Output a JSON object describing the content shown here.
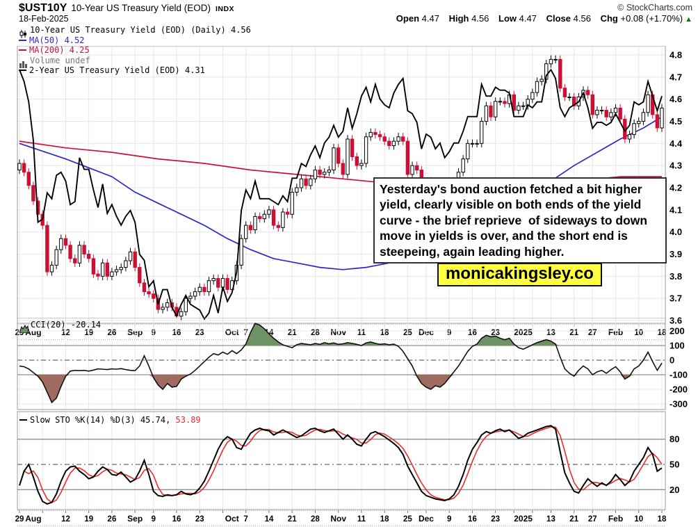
{
  "header": {
    "symbol": "$UST10Y",
    "title": "10-Year US Treasury Yield (EOD)",
    "exchange": "INDX",
    "date": "18-Feb-2025",
    "source": "© StockCharts.com"
  },
  "quote": {
    "open": {
      "label": "Open",
      "value": "4.47"
    },
    "high": {
      "label": "High",
      "value": "4.56"
    },
    "low": {
      "label": "Low",
      "value": "4.47"
    },
    "close": {
      "label": "Close",
      "value": "4.56"
    },
    "chg": {
      "label": "Chg",
      "value": "+0.08 (+1.70%)"
    },
    "direction_icon": "▲"
  },
  "legend": {
    "price": "10-Year US Treasury Yield (EOD) (Daily) 4.56",
    "ma50": "MA(50) 4.52",
    "ma200": "MA(200) 4.25",
    "volume": "Volume undef",
    "two_year": "2-Year US Treasury Yield (EOD) 4.31",
    "cci": "CCI(20) -20.14",
    "sto_black": "Slow STO %K(14) %D(3) 45.74,",
    "sto_red": "53.89"
  },
  "annotation": {
    "text": "Yesterday's bond auction fetched a bit higher yield, clearly visible on both ends of the yield curve - the brief reprieve  of sideways to down move in yields is over, and the short end is steepeing, again leading higher."
  },
  "watermark": "monicakingsley.co",
  "colors": {
    "candle_down": "#cc1034",
    "candle_up_fill": "#ffffff",
    "outline": "#000000",
    "ma50": "#2929c8",
    "ma200": "#cc1034",
    "sto_d": "#ee2a2a",
    "cci_green_fill": "#6d9263",
    "cci_maroon_fill": "#a06a60",
    "grid": "#e7e7e7",
    "panel_border": "#999999",
    "strong_grid": "#909090",
    "up_triangle": "#117711",
    "watermark_bg": "#ffff42"
  },
  "chart_data": {
    "x_days": 140,
    "week_idx": [
      0,
      5,
      10,
      15,
      20,
      25,
      29,
      34,
      39,
      44,
      49,
      54,
      59,
      64,
      69,
      74,
      79,
      84,
      88,
      93,
      98,
      103,
      107,
      111,
      115,
      120,
      124,
      129,
      134,
      139
    ],
    "xticks": [
      [
        0,
        "29",
        0
      ],
      [
        3,
        "Aug",
        1
      ],
      [
        10,
        "12",
        0
      ],
      [
        15,
        "19",
        0
      ],
      [
        20,
        "26",
        0
      ],
      [
        25,
        "Sep",
        1
      ],
      [
        29,
        "9",
        0
      ],
      [
        34,
        "16",
        0
      ],
      [
        39,
        "23",
        0
      ],
      [
        46,
        "Oct",
        1
      ],
      [
        49,
        "7",
        0
      ],
      [
        54,
        "14",
        0
      ],
      [
        59,
        "21",
        0
      ],
      [
        64,
        "28",
        0
      ],
      [
        69,
        "Nov",
        1
      ],
      [
        74,
        "11",
        0
      ],
      [
        79,
        "18",
        0
      ],
      [
        84,
        "25",
        0
      ],
      [
        88,
        "Dec",
        1
      ],
      [
        93,
        "9",
        0
      ],
      [
        98,
        "16",
        0
      ],
      [
        103,
        "23",
        0
      ],
      [
        109,
        "2025",
        1
      ],
      [
        115,
        "13",
        0
      ],
      [
        120,
        "21",
        0
      ],
      [
        124,
        "27",
        0
      ],
      [
        129,
        "Feb",
        1
      ],
      [
        134,
        "10",
        0
      ],
      [
        139,
        "18",
        0
      ]
    ],
    "main": {
      "type": "candlestick",
      "yticks": [
        "4.8",
        "4.7",
        "4.6",
        "4.5",
        "4.4",
        "4.3",
        "4.2",
        "4.1",
        "4.0",
        "3.9",
        "3.8",
        "3.7",
        "3.6"
      ],
      "ylim": [
        3.6,
        4.8
      ],
      "first_open": 4.28,
      "wick": 0.018,
      "closes": [
        4.31,
        4.27,
        4.21,
        4.14,
        4.08,
        4.03,
        3.82,
        3.85,
        3.92,
        3.97,
        3.94,
        3.88,
        3.86,
        3.94,
        3.9,
        3.88,
        3.81,
        3.8,
        3.86,
        3.8,
        3.82,
        3.83,
        3.84,
        3.87,
        3.91,
        3.84,
        3.77,
        3.73,
        3.72,
        3.7,
        3.65,
        3.66,
        3.68,
        3.66,
        3.62,
        3.64,
        3.7,
        3.71,
        3.73,
        3.75,
        3.73,
        3.78,
        3.79,
        3.75,
        3.79,
        3.74,
        3.78,
        3.85,
        3.97,
        4.03,
        4.01,
        4.07,
        4.06,
        4.08,
        4.1,
        4.03,
        4.02,
        4.09,
        4.08,
        4.18,
        4.2,
        4.24,
        4.21,
        4.24,
        4.28,
        4.26,
        4.27,
        4.28,
        4.38,
        4.31,
        4.26,
        4.42,
        4.34,
        4.3,
        4.31,
        4.43,
        4.45,
        4.44,
        4.43,
        4.41,
        4.39,
        4.41,
        4.43,
        4.41,
        4.26,
        4.3,
        4.28,
        4.18,
        4.19,
        4.23,
        4.18,
        4.18,
        4.15,
        4.2,
        4.23,
        4.27,
        4.33,
        4.4,
        4.4,
        4.4,
        4.5,
        4.57,
        4.52,
        4.59,
        4.59,
        4.58,
        4.62,
        4.55,
        4.57,
        4.57,
        4.6,
        4.63,
        4.68,
        4.69,
        4.76,
        4.78,
        4.78,
        4.65,
        4.61,
        4.61,
        4.57,
        4.61,
        4.64,
        4.62,
        4.53,
        4.55,
        4.55,
        4.52,
        4.54,
        4.56,
        4.51,
        4.42,
        4.44,
        4.49,
        4.5,
        4.54,
        4.62,
        4.53,
        4.47,
        4.56
      ],
      "ma50_anchors": [
        [
          0,
          4.4
        ],
        [
          10,
          4.33
        ],
        [
          20,
          4.25
        ],
        [
          25,
          4.18
        ],
        [
          30,
          4.13
        ],
        [
          35,
          4.08
        ],
        [
          40,
          4.03
        ],
        [
          45,
          3.97
        ],
        [
          50,
          3.92
        ],
        [
          55,
          3.88
        ],
        [
          60,
          3.86
        ],
        [
          65,
          3.84
        ],
        [
          70,
          3.83
        ],
        [
          75,
          3.84
        ],
        [
          80,
          3.86
        ],
        [
          85,
          3.89
        ],
        [
          90,
          3.93
        ],
        [
          95,
          3.98
        ],
        [
          100,
          4.04
        ],
        [
          105,
          4.11
        ],
        [
          110,
          4.17
        ],
        [
          115,
          4.23
        ],
        [
          120,
          4.3
        ],
        [
          125,
          4.36
        ],
        [
          130,
          4.42
        ],
        [
          135,
          4.47
        ],
        [
          139,
          4.52
        ]
      ],
      "ma200_anchors": [
        [
          0,
          4.41
        ],
        [
          10,
          4.38
        ],
        [
          20,
          4.36
        ],
        [
          30,
          4.33
        ],
        [
          40,
          4.31
        ],
        [
          50,
          4.28
        ],
        [
          60,
          4.26
        ],
        [
          70,
          4.24
        ],
        [
          80,
          4.22
        ],
        [
          90,
          4.21
        ],
        [
          100,
          4.2
        ],
        [
          105,
          4.2
        ],
        [
          110,
          4.21
        ],
        [
          115,
          4.22
        ],
        [
          120,
          4.23
        ],
        [
          125,
          4.24
        ],
        [
          130,
          4.25
        ],
        [
          135,
          4.25
        ],
        [
          139,
          4.25
        ]
      ],
      "two_year": {
        "scale_min": 3.54,
        "scale_max": 4.5,
        "values": [
          4.4,
          4.36,
          4.29,
          4.16,
          3.88,
          3.89,
          3.98,
          3.96,
          4.04,
          4.05,
          4.02,
          3.94,
          3.95,
          4.1,
          4.06,
          4.06,
          3.99,
          3.93,
          4.01,
          3.91,
          3.94,
          3.9,
          3.87,
          3.9,
          3.92,
          3.88,
          3.77,
          3.75,
          3.66,
          3.68,
          3.6,
          3.65,
          3.65,
          3.59,
          3.56,
          3.6,
          3.63,
          3.6,
          3.59,
          3.58,
          3.55,
          3.57,
          3.63,
          3.57,
          3.66,
          3.61,
          3.64,
          3.71,
          3.92,
          3.99,
          3.96,
          4.02,
          3.96,
          3.96,
          3.96,
          3.95,
          3.94,
          3.97,
          3.95,
          4.03,
          4.03,
          4.08,
          4.07,
          4.11,
          4.14,
          4.1,
          4.15,
          4.17,
          4.21,
          4.17,
          4.19,
          4.27,
          4.2,
          4.25,
          4.31,
          4.34,
          4.29,
          4.35,
          4.3,
          4.28,
          4.27,
          4.32,
          4.35,
          4.37,
          4.26,
          4.25,
          4.22,
          4.13,
          4.18,
          4.17,
          4.13,
          4.15,
          4.1,
          4.12,
          4.15,
          4.15,
          4.19,
          4.24,
          4.24,
          4.24,
          4.35,
          4.31,
          4.31,
          4.34,
          4.33,
          4.33,
          4.32,
          4.24,
          4.24,
          4.24,
          4.28,
          4.27,
          4.29,
          4.29,
          4.38,
          4.4,
          4.37,
          4.27,
          4.24,
          4.27,
          4.28,
          4.29,
          4.32,
          4.27,
          4.2,
          4.22,
          4.22,
          4.21,
          4.22,
          4.25,
          4.22,
          4.19,
          4.21,
          4.29,
          4.28,
          4.29,
          4.36,
          4.31,
          4.26,
          4.31
        ]
      },
      "last_values": {
        "price": 4.56,
        "ma50": 4.52,
        "ma200": 4.25,
        "two_year": 4.31
      }
    },
    "cci": {
      "type": "line_area",
      "last": -20.14,
      "yticks": [
        200,
        100,
        0,
        -100,
        -200,
        -300
      ],
      "upper_band": 100,
      "lower_band": -100,
      "values": [
        -40,
        -45,
        -60,
        -85,
        -110,
        -150,
        -220,
        -290,
        -260,
        -180,
        -110,
        -75,
        -70,
        -72,
        -70,
        -75,
        -68,
        -60,
        -62,
        -65,
        -60,
        -62,
        -58,
        -65,
        -70,
        -72,
        -40,
        30,
        -40,
        -120,
        -170,
        -200,
        -160,
        -185,
        -180,
        -130,
        -110,
        -95,
        -70,
        -40,
        -10,
        20,
        45,
        35,
        55,
        40,
        65,
        45,
        70,
        110,
        190,
        252,
        240,
        215,
        180,
        150,
        125,
        105,
        95,
        85,
        105,
        115,
        110,
        105,
        115,
        108,
        120,
        112,
        118,
        108,
        112,
        120,
        115,
        108,
        100,
        118,
        125,
        115,
        108,
        112,
        105,
        110,
        95,
        60,
        10,
        -40,
        -110,
        -160,
        -185,
        -200,
        -175,
        -185,
        -160,
        -120,
        -80,
        -40,
        10,
        60,
        95,
        110,
        150,
        170,
        160,
        165,
        150,
        140,
        150,
        110,
        85,
        75,
        90,
        105,
        120,
        130,
        140,
        130,
        110,
        20,
        -60,
        -90,
        -110,
        -70,
        -40,
        -60,
        -100,
        -80,
        -70,
        -90,
        -65,
        -45,
        -80,
        -130,
        -110,
        -60,
        -40,
        0,
        55,
        -10,
        -70,
        -20.14
      ]
    },
    "sto": {
      "type": "line",
      "last_k": 45.74,
      "last_d": 53.89,
      "yticks": [
        80,
        50,
        20
      ],
      "mid_band": 50,
      "values_k": [
        25,
        42,
        50,
        35,
        18,
        6,
        3,
        5,
        15,
        30,
        42,
        47,
        48,
        42,
        38,
        33,
        35,
        42,
        47,
        44,
        38,
        37,
        41,
        35,
        29,
        32,
        42,
        55,
        38,
        18,
        13,
        12,
        14,
        13,
        14,
        18,
        15,
        14,
        16,
        22,
        30,
        42,
        55,
        68,
        78,
        83,
        80,
        70,
        68,
        78,
        87,
        91,
        93,
        91,
        90,
        85,
        88,
        91,
        88,
        85,
        82,
        84,
        88,
        92,
        93,
        90,
        88,
        90,
        92,
        86,
        80,
        85,
        80,
        74,
        72,
        80,
        87,
        89,
        86,
        83,
        79,
        75,
        70,
        62,
        48,
        38,
        28,
        18,
        13,
        11,
        9,
        8,
        7,
        9,
        14,
        24,
        38,
        55,
        68,
        76,
        85,
        89,
        87,
        90,
        92,
        89,
        91,
        86,
        81,
        83,
        87,
        89,
        91,
        93,
        95,
        96,
        92,
        65,
        40,
        28,
        18,
        16,
        25,
        33,
        28,
        24,
        28,
        25,
        30,
        38,
        32,
        25,
        30,
        42,
        50,
        58,
        70,
        62,
        42,
        45.74
      ]
    }
  }
}
